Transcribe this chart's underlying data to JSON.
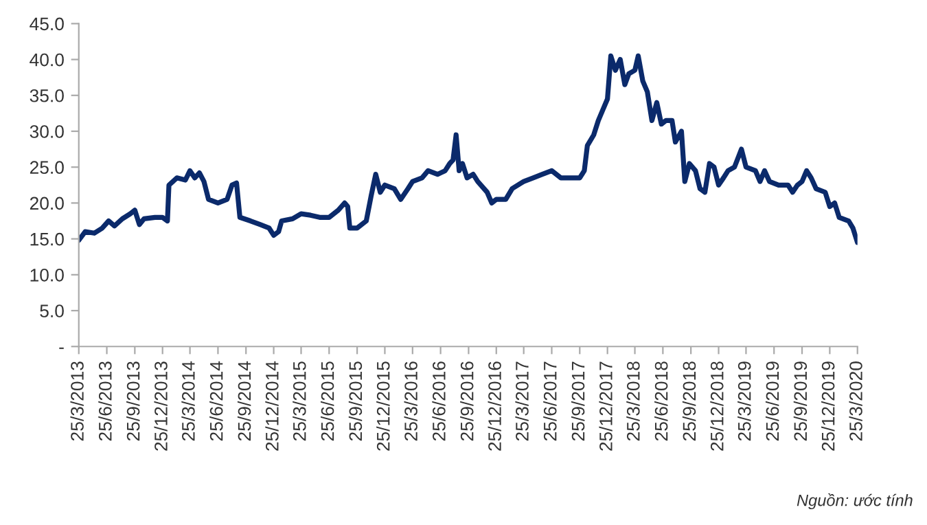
{
  "chart_data": {
    "type": "line",
    "x": [
      "2013-03-25",
      "2013-04-15",
      "2013-05-15",
      "2013-06-10",
      "2013-07-01",
      "2013-07-20",
      "2013-08-15",
      "2013-09-10",
      "2013-09-25",
      "2013-10-10",
      "2013-10-25",
      "2013-11-30",
      "2013-12-25",
      "2014-01-10",
      "2014-01-15",
      "2014-02-10",
      "2014-03-10",
      "2014-03-25",
      "2014-04-10",
      "2014-04-25",
      "2014-05-10",
      "2014-05-25",
      "2014-06-25",
      "2014-07-25",
      "2014-08-10",
      "2014-08-25",
      "2014-09-05",
      "2014-10-10",
      "2014-11-10",
      "2014-12-10",
      "2014-12-25",
      "2015-01-10",
      "2015-01-20",
      "2015-02-25",
      "2015-03-25",
      "2015-04-25",
      "2015-05-25",
      "2015-06-25",
      "2015-07-25",
      "2015-08-15",
      "2015-08-25",
      "2015-09-01",
      "2015-09-25",
      "2015-10-25",
      "2015-11-10",
      "2015-11-25",
      "2015-12-10",
      "2015-12-25",
      "2016-01-25",
      "2016-02-15",
      "2016-03-10",
      "2016-03-25",
      "2016-04-25",
      "2016-05-15",
      "2016-06-15",
      "2016-07-10",
      "2016-07-25",
      "2016-08-05",
      "2016-08-15",
      "2016-08-25",
      "2016-09-05",
      "2016-09-20",
      "2016-10-10",
      "2016-10-25",
      "2016-11-25",
      "2016-12-10",
      "2016-12-25",
      "2017-01-25",
      "2017-02-15",
      "2017-03-25",
      "2017-04-25",
      "2017-05-25",
      "2017-06-25",
      "2017-07-25",
      "2017-08-25",
      "2017-09-25",
      "2017-10-10",
      "2017-10-20",
      "2017-11-10",
      "2017-11-25",
      "2017-12-10",
      "2017-12-25",
      "2018-01-05",
      "2018-01-20",
      "2018-02-05",
      "2018-02-20",
      "2018-03-05",
      "2018-03-25",
      "2018-04-05",
      "2018-04-20",
      "2018-05-05",
      "2018-05-20",
      "2018-06-05",
      "2018-06-20",
      "2018-07-05",
      "2018-07-25",
      "2018-08-05",
      "2018-08-25",
      "2018-09-05",
      "2018-09-20",
      "2018-10-10",
      "2018-10-25",
      "2018-11-10",
      "2018-11-25",
      "2018-12-10",
      "2018-12-25",
      "2019-01-10",
      "2019-01-25",
      "2019-02-15",
      "2019-03-10",
      "2019-03-25",
      "2019-04-25",
      "2019-05-10",
      "2019-05-25",
      "2019-06-10",
      "2019-07-10",
      "2019-08-10",
      "2019-08-25",
      "2019-09-10",
      "2019-09-25",
      "2019-10-10",
      "2019-10-25",
      "2019-11-10",
      "2019-12-10",
      "2019-12-25",
      "2020-01-10",
      "2020-01-25",
      "2020-02-25",
      "2020-03-10",
      "2020-03-25"
    ],
    "series": [
      {
        "color": "#0b2a6b",
        "values": [
          14.8,
          16.0,
          15.8,
          16.5,
          17.5,
          16.8,
          17.8,
          18.5,
          19.0,
          17.0,
          17.8,
          18.0,
          18.0,
          17.5,
          22.5,
          23.5,
          23.2,
          24.5,
          23.5,
          24.2,
          23.0,
          20.5,
          20.0,
          20.5,
          22.5,
          22.8,
          18.0,
          17.5,
          17.0,
          16.5,
          15.5,
          16.0,
          17.5,
          17.8,
          18.5,
          18.3,
          18.0,
          18.0,
          19.0,
          20.0,
          19.5,
          16.5,
          16.5,
          17.5,
          21.0,
          24.0,
          21.5,
          22.5,
          22.0,
          20.5,
          22.0,
          23.0,
          23.5,
          24.5,
          24.0,
          24.5,
          25.5,
          26.0,
          29.5,
          24.5,
          25.5,
          23.5,
          24.0,
          23.0,
          21.5,
          20.0,
          20.5,
          20.5,
          22.0,
          23.0,
          23.5,
          24.0,
          24.5,
          23.5,
          23.5,
          23.5,
          24.5,
          28.0,
          29.5,
          31.5,
          33.0,
          34.5,
          40.5,
          38.5,
          40.0,
          36.5,
          38.0,
          38.5,
          40.5,
          37.0,
          35.5,
          31.5,
          34.0,
          31.0,
          31.5,
          31.5,
          28.5,
          30.0,
          23.0,
          25.5,
          24.5,
          22.0,
          21.5,
          25.5,
          25.0,
          22.5,
          23.5,
          24.5,
          25.0,
          27.5,
          25.0,
          24.5,
          23.0,
          24.5,
          23.0,
          22.5,
          22.5,
          21.5,
          22.5,
          23.0,
          24.5,
          23.5,
          22.0,
          21.5,
          19.5,
          20.0,
          18.0,
          17.5,
          16.5,
          14.5
        ]
      }
    ],
    "xlim": [
      "2013-03-25",
      "2020-03-25"
    ],
    "xticks": [
      {
        "value": "2013-03-25",
        "label": "25/3/2013"
      },
      {
        "value": "2013-06-25",
        "label": "25/6/2013"
      },
      {
        "value": "2013-09-25",
        "label": "25/9/2013"
      },
      {
        "value": "2013-12-25",
        "label": "25/12/2013"
      },
      {
        "value": "2014-03-25",
        "label": "25/3/2014"
      },
      {
        "value": "2014-06-25",
        "label": "25/6/2014"
      },
      {
        "value": "2014-09-25",
        "label": "25/9/2014"
      },
      {
        "value": "2014-12-25",
        "label": "25/12/2014"
      },
      {
        "value": "2015-03-25",
        "label": "25/3/2015"
      },
      {
        "value": "2015-06-25",
        "label": "25/6/2015"
      },
      {
        "value": "2015-09-25",
        "label": "25/9/2015"
      },
      {
        "value": "2015-12-25",
        "label": "25/12/2015"
      },
      {
        "value": "2016-03-25",
        "label": "25/3/2016"
      },
      {
        "value": "2016-06-25",
        "label": "25/6/2016"
      },
      {
        "value": "2016-09-25",
        "label": "25/9/2016"
      },
      {
        "value": "2016-12-25",
        "label": "25/12/2016"
      },
      {
        "value": "2017-03-25",
        "label": "25/3/2017"
      },
      {
        "value": "2017-06-25",
        "label": "25/6/2017"
      },
      {
        "value": "2017-09-25",
        "label": "25/9/2017"
      },
      {
        "value": "2017-12-25",
        "label": "25/12/2017"
      },
      {
        "value": "2018-03-25",
        "label": "25/3/2018"
      },
      {
        "value": "2018-06-25",
        "label": "25/6/2018"
      },
      {
        "value": "2018-09-25",
        "label": "25/9/2018"
      },
      {
        "value": "2018-12-25",
        "label": "25/12/2018"
      },
      {
        "value": "2019-03-25",
        "label": "25/3/2019"
      },
      {
        "value": "2019-06-25",
        "label": "25/6/2019"
      },
      {
        "value": "2019-09-25",
        "label": "25/9/2019"
      },
      {
        "value": "2019-12-25",
        "label": "25/12/2019"
      },
      {
        "value": "2020-03-25",
        "label": "25/3/2020"
      }
    ],
    "ylim": [
      0,
      45
    ],
    "yticks": [
      {
        "value": 0,
        "label": "-"
      },
      {
        "value": 5,
        "label": "5.0"
      },
      {
        "value": 10,
        "label": "10.0"
      },
      {
        "value": 15,
        "label": "15.0"
      },
      {
        "value": 20,
        "label": "20.0"
      },
      {
        "value": 25,
        "label": "25.0"
      },
      {
        "value": 30,
        "label": "30.0"
      },
      {
        "value": 35,
        "label": "35.0"
      },
      {
        "value": 40,
        "label": "40.0"
      },
      {
        "value": 45,
        "label": "45.0"
      }
    ],
    "grid": false,
    "marker": "none",
    "line_style": "solid",
    "annotations": [
      "Nguồn: ước tính"
    ]
  }
}
